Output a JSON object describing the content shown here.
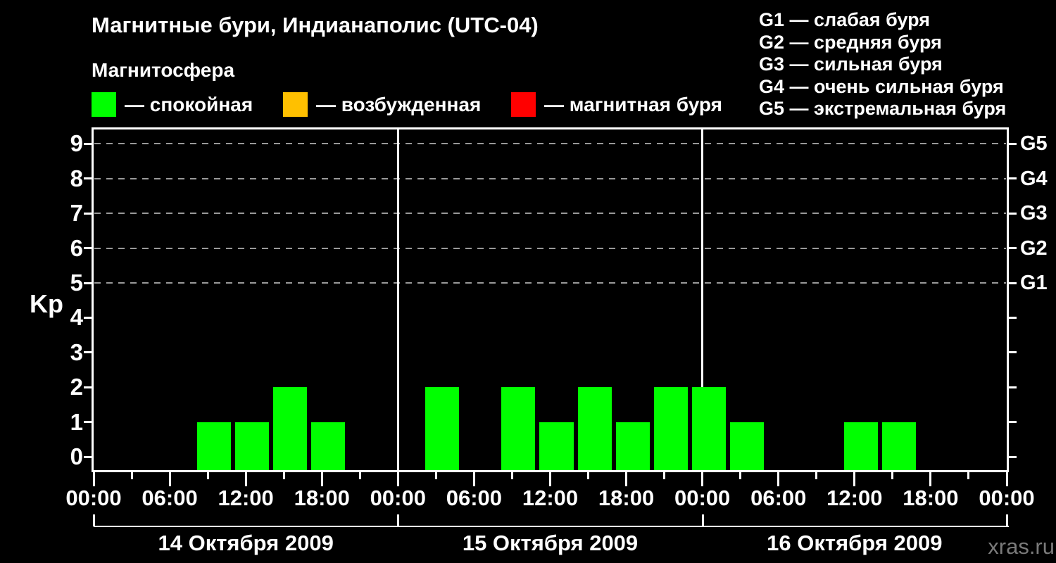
{
  "header": {
    "title": "Магнитные бури, Индианаполис (UTC-04)",
    "subtitle": "Магнитосфера"
  },
  "mag_legend": {
    "items": [
      {
        "name": "quiet",
        "color": "#00FF00",
        "label": "— спокойная"
      },
      {
        "name": "excited",
        "color": "#FFC000",
        "label": "— возбужденная"
      },
      {
        "name": "storm",
        "color": "#FF0000",
        "label": "— магнитная буря"
      }
    ]
  },
  "g_legend": {
    "items": [
      "G1 — слабая буря",
      "G2 — средняя буря",
      "G3 — сильная буря",
      "G4 — очень сильная буря",
      "G5 — экстремальная буря"
    ]
  },
  "watermark": "xras.ru",
  "chart_data": {
    "type": "bar",
    "title": "Магнитные бури, Индианаполис (UTC-04)",
    "ylabel": "Kp",
    "ylim": [
      0,
      9
    ],
    "y_ticks": [
      0,
      1,
      2,
      3,
      4,
      5,
      6,
      7,
      8,
      9
    ],
    "grid": "dashed horizontal lines at Kp 5..9",
    "legend_position": "top",
    "right_axis_labels": [
      {
        "kp": 5,
        "label": "G1"
      },
      {
        "kp": 6,
        "label": "G2"
      },
      {
        "kp": 7,
        "label": "G3"
      },
      {
        "kp": 8,
        "label": "G4"
      },
      {
        "kp": 9,
        "label": "G5"
      }
    ],
    "time_axis": {
      "range_hours": 72,
      "major_tick_step_hours": 6,
      "minor_tick_step_hours": 3,
      "tick_labels_cycle": [
        "00:00",
        "06:00",
        "12:00",
        "18:00"
      ],
      "last_tick_label": "00:00"
    },
    "days": [
      {
        "date": "14 Октября 2009"
      },
      {
        "date": "15 Октября 2009"
      },
      {
        "date": "16 Октября 2009"
      }
    ],
    "bar_interval_hours": 3,
    "bar_color_rule": {
      "quiet_kp_max": 3,
      "excited_kp": 4,
      "storm_kp_min": 5
    },
    "colors": {
      "quiet": "#00FF00",
      "excited": "#FFC000",
      "storm": "#FF0000"
    },
    "bars": [
      {
        "start_hour": 8,
        "kp": 1
      },
      {
        "start_hour": 11,
        "kp": 1
      },
      {
        "start_hour": 14,
        "kp": 2
      },
      {
        "start_hour": 17,
        "kp": 1
      },
      {
        "start_hour": 26,
        "kp": 2
      },
      {
        "start_hour": 32,
        "kp": 2
      },
      {
        "start_hour": 35,
        "kp": 1
      },
      {
        "start_hour": 38,
        "kp": 2
      },
      {
        "start_hour": 41,
        "kp": 1
      },
      {
        "start_hour": 44,
        "kp": 2
      },
      {
        "start_hour": 47,
        "kp": 2
      },
      {
        "start_hour": 50,
        "kp": 1
      },
      {
        "start_hour": 59,
        "kp": 1
      },
      {
        "start_hour": 62,
        "kp": 1
      }
    ]
  }
}
